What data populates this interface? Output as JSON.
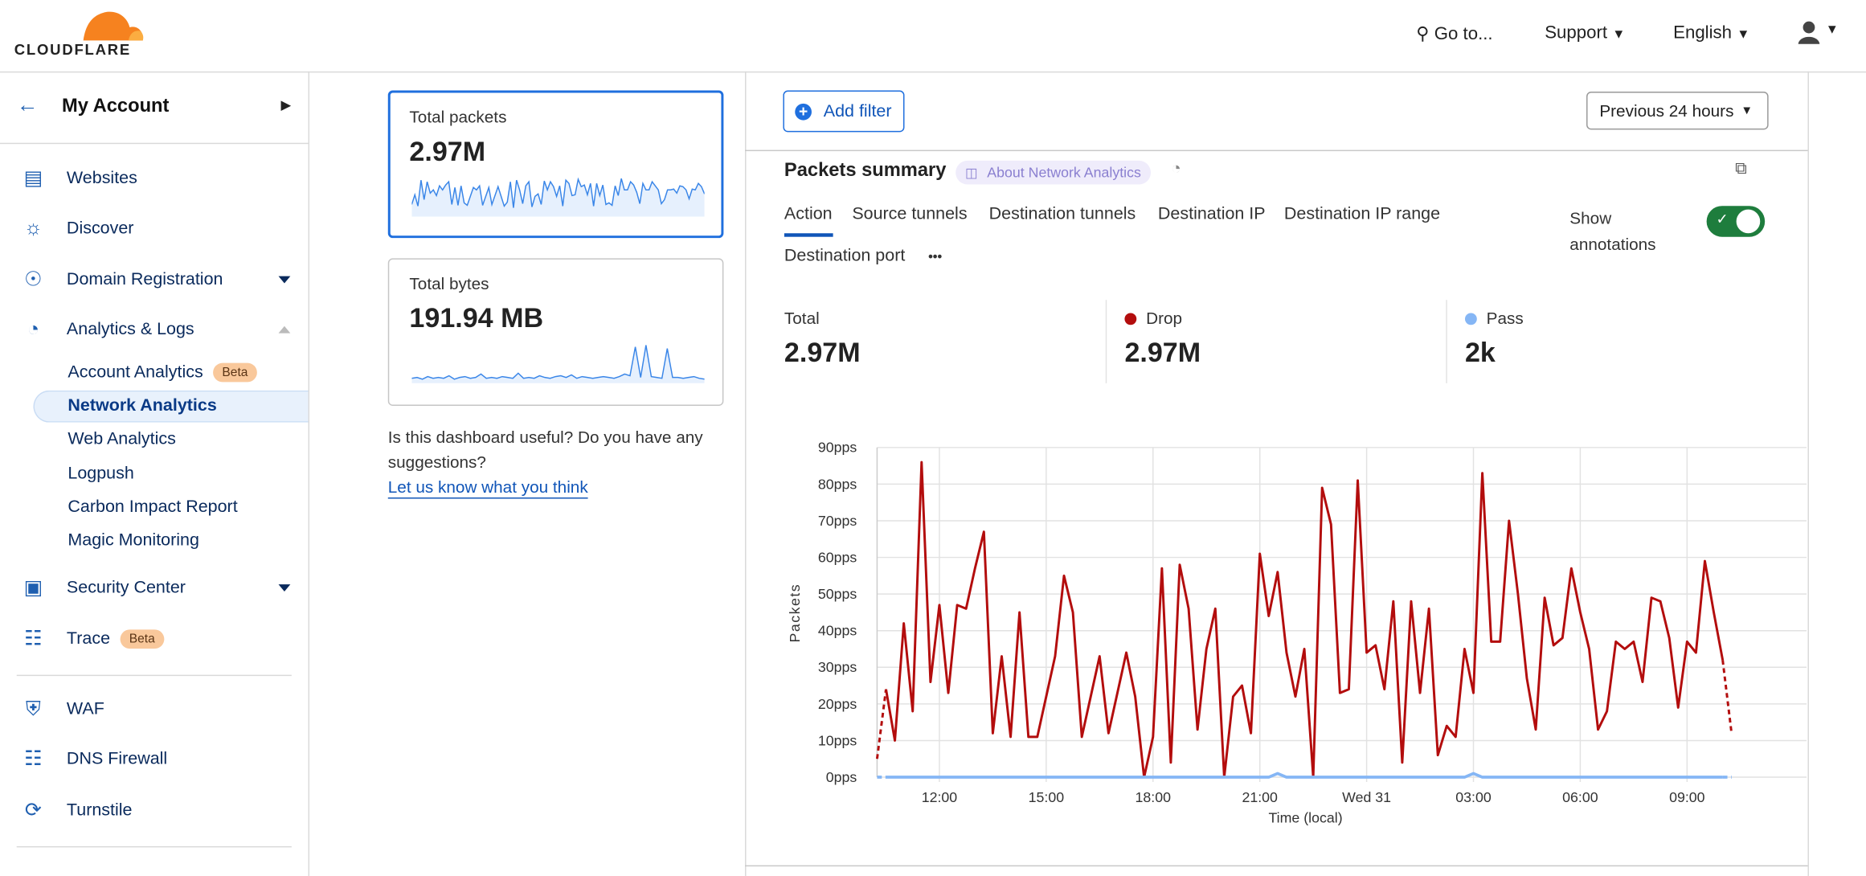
{
  "header": {
    "logo_text": "CLOUDFLARE",
    "goto": "Go to...",
    "support": "Support",
    "language": "English"
  },
  "sidebar": {
    "account": "My Account",
    "items": [
      {
        "label": "Websites",
        "icon": "browser-window-icon"
      },
      {
        "label": "Discover",
        "icon": "lightbulb-icon"
      },
      {
        "label": "Domain Registration",
        "icon": "globe-icon"
      },
      {
        "label": "Analytics & Logs",
        "icon": "pie-chart-icon"
      },
      {
        "label": "Security Center",
        "icon": "security-center-icon"
      },
      {
        "label": "Trace",
        "icon": "trace-icon",
        "badge": "Beta"
      },
      {
        "label": "WAF",
        "icon": "shield-gear-icon"
      },
      {
        "label": "DNS Firewall",
        "icon": "network-tree-icon"
      },
      {
        "label": "Turnstile",
        "icon": "turnstile-icon"
      }
    ],
    "sub_items": [
      {
        "label": "Account Analytics",
        "badge": "Beta"
      },
      {
        "label": "Network Analytics",
        "active": true
      },
      {
        "label": "Web Analytics"
      },
      {
        "label": "Logpush"
      },
      {
        "label": "Carbon Impact Report"
      },
      {
        "label": "Magic Monitoring"
      }
    ]
  },
  "cards": [
    {
      "label": "Total packets",
      "value": "2.97M",
      "selected": true,
      "sparkline": [
        12,
        24,
        10,
        42,
        18,
        40,
        26,
        30,
        23,
        35,
        30,
        36,
        40,
        12,
        33,
        11,
        35,
        14,
        11,
        22,
        33,
        30,
        35,
        11,
        22,
        33,
        12,
        23,
        34,
        22,
        10,
        15,
        40,
        8,
        42,
        30,
        13,
        35,
        40,
        9,
        22,
        25,
        12,
        41,
        30,
        40,
        34,
        22,
        35,
        10,
        42,
        38,
        23,
        24,
        43,
        34,
        36,
        24,
        38,
        10,
        38,
        23,
        36,
        12,
        14,
        11,
        35,
        23,
        44,
        30,
        30,
        40,
        36,
        27,
        13,
        38,
        30,
        30,
        40,
        35,
        30,
        13,
        18,
        30,
        30,
        31,
        26,
        35,
        34,
        30,
        19,
        31,
        30,
        38,
        34,
        25
      ]
    },
    {
      "label": "Total bytes",
      "value": "191.94 MB",
      "sparkline": [
        3,
        4,
        2,
        5,
        3,
        4,
        3,
        6,
        2,
        4,
        5,
        3,
        4,
        8,
        3,
        4,
        3,
        5,
        4,
        3,
        9,
        3,
        4,
        3,
        6,
        4,
        3,
        5,
        6,
        4,
        7,
        3,
        5,
        4,
        3,
        4,
        5,
        4,
        3,
        5,
        8,
        6,
        40,
        4,
        42,
        5,
        4,
        3,
        38,
        4,
        4,
        3,
        4,
        5,
        3,
        2
      ]
    }
  ],
  "feedback": {
    "text": "Is this dashboard useful? Do you have any suggestions?",
    "link": "Let us know what you think"
  },
  "toolbar": {
    "add_filter": "Add filter",
    "time_range": "Previous 24 hours"
  },
  "summary": {
    "title": "Packets summary",
    "about": "About Network Analytics",
    "tabs": [
      "Action",
      "Source tunnels",
      "Destination tunnels",
      "Destination IP",
      "Destination IP range",
      "Destination port"
    ],
    "active_tab": "Action",
    "more": "•••",
    "annotations_label": "Show annotations",
    "annotations_on": true,
    "stats": [
      {
        "label": "Total",
        "value": "2.97M"
      },
      {
        "label": "Drop",
        "value": "2.97M",
        "color": "#b30d0d"
      },
      {
        "label": "Pass",
        "value": "2k",
        "color": "#85b6f5"
      }
    ]
  },
  "chart_data": {
    "type": "line",
    "xlabel": "Time (local)",
    "ylabel": "Packets",
    "ylim": [
      0,
      90
    ],
    "yticks": [
      "0pps",
      "10pps",
      "20pps",
      "30pps",
      "40pps",
      "50pps",
      "60pps",
      "70pps",
      "80pps",
      "90pps"
    ],
    "xticks": [
      {
        "t": "12:00",
        "label": "12:00"
      },
      {
        "t": "15:00",
        "label": "15:00"
      },
      {
        "t": "18:00",
        "label": "18:00"
      },
      {
        "t": "21:00",
        "label": "21:00"
      },
      {
        "t": "24:00",
        "label": "Wed 31"
      },
      {
        "t": "27:00",
        "label": "03:00"
      },
      {
        "t": "30:00",
        "label": "06:00"
      },
      {
        "t": "33:00",
        "label": "09:00"
      }
    ],
    "x": [
      "10:15",
      "10:30",
      "10:45",
      "11:00",
      "11:15",
      "11:30",
      "11:45",
      "12:00",
      "12:15",
      "12:30",
      "12:45",
      "13:00",
      "13:15",
      "13:30",
      "13:45",
      "14:00",
      "14:15",
      "14:30",
      "14:45",
      "15:00",
      "15:15",
      "15:30",
      "15:45",
      "16:00",
      "16:15",
      "16:30",
      "16:45",
      "17:00",
      "17:15",
      "17:30",
      "17:45",
      "18:00",
      "18:15",
      "18:30",
      "18:45",
      "19:00",
      "19:15",
      "19:30",
      "19:45",
      "20:00",
      "20:15",
      "20:30",
      "20:45",
      "21:00",
      "21:15",
      "21:30",
      "21:45",
      "22:00",
      "22:15",
      "22:30",
      "22:45",
      "23:00",
      "23:15",
      "23:30",
      "23:45",
      "24:00",
      "24:15",
      "24:30",
      "24:45",
      "25:00",
      "25:15",
      "25:30",
      "25:45",
      "26:00",
      "26:15",
      "26:30",
      "26:45",
      "27:00",
      "27:15",
      "27:30",
      "27:45",
      "28:00",
      "28:15",
      "28:30",
      "28:45",
      "29:00",
      "29:15",
      "29:30",
      "29:45",
      "30:00",
      "30:15",
      "30:30",
      "30:45",
      "31:00",
      "31:15",
      "31:30",
      "31:45",
      "32:00",
      "32:15",
      "32:30",
      "32:45",
      "33:00",
      "33:15",
      "33:30",
      "33:45",
      "34:00",
      "34:15"
    ],
    "grid": true,
    "series": [
      {
        "name": "Drop",
        "color": "#b30d0d",
        "values": [
          5,
          24,
          10,
          42,
          18,
          86,
          26,
          47,
          23,
          47,
          46,
          57,
          67,
          12,
          33,
          11,
          45,
          11,
          11,
          22,
          33,
          55,
          45,
          11,
          22,
          33,
          12,
          23,
          34,
          22,
          0,
          11,
          57,
          4,
          58,
          46,
          13,
          35,
          46,
          0,
          22,
          25,
          12,
          61,
          44,
          56,
          34,
          22,
          35,
          0,
          79,
          69,
          23,
          24,
          81,
          34,
          36,
          24,
          48,
          4,
          48,
          23,
          46,
          6,
          14,
          11,
          35,
          23,
          83,
          37,
          37,
          70,
          50,
          27,
          13,
          49,
          36,
          38,
          57,
          45,
          35,
          13,
          18,
          37,
          35,
          37,
          26,
          49,
          48,
          38,
          19,
          37,
          34,
          59,
          45,
          32,
          12
        ]
      },
      {
        "name": "Pass",
        "color": "#85b6f5",
        "values": [
          0,
          0,
          0,
          0,
          0,
          0,
          0,
          0,
          0,
          0,
          0,
          0,
          0,
          0,
          0,
          0,
          0,
          0,
          0,
          0,
          0,
          0,
          0,
          0,
          0,
          0,
          0,
          0,
          0,
          0,
          0,
          0,
          0,
          0,
          0,
          0,
          0,
          0,
          0,
          0,
          0,
          0,
          0,
          0,
          0,
          1,
          0,
          0,
          0,
          0,
          0,
          0,
          0,
          0,
          0,
          0,
          0,
          0,
          0,
          0,
          0,
          0,
          0,
          0,
          0,
          0,
          0,
          1,
          0,
          0,
          0,
          0,
          0,
          0,
          0,
          0,
          0,
          0,
          0,
          0,
          0,
          0,
          0,
          0,
          0,
          0,
          0,
          0,
          0,
          0,
          0,
          0,
          0,
          0,
          0,
          0,
          0
        ]
      }
    ]
  }
}
